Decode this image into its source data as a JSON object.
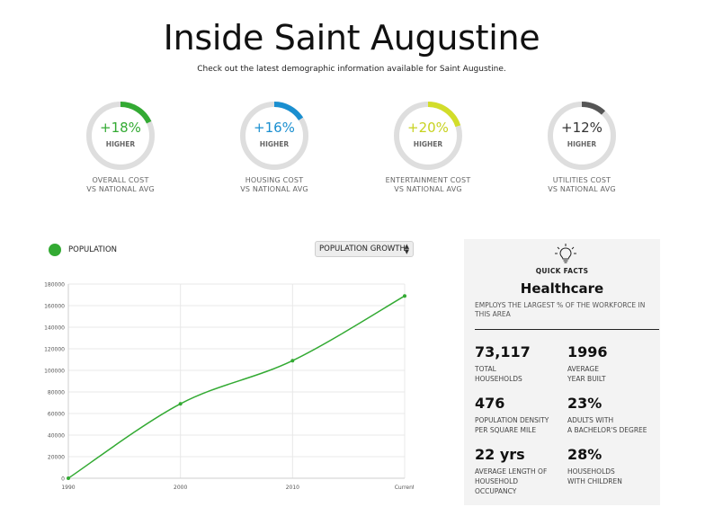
{
  "header": {
    "title": "Inside Saint Augustine",
    "subtitle": "Check out the latest demographic information available for Saint Augustine."
  },
  "stats": [
    {
      "value": "+18%",
      "sub": "HIGHER",
      "label_line1": "OVERALL COST",
      "label_line2": "VS NATIONAL AVG",
      "color": "#33aa33",
      "percent": 18
    },
    {
      "value": "+16%",
      "sub": "HIGHER",
      "label_line1": "HOUSING COST",
      "label_line2": "VS NATIONAL AVG",
      "color": "#1a8fd0",
      "percent": 16
    },
    {
      "value": "+20%",
      "sub": "HIGHER",
      "label_line1": "ENTERTAINMENT COST",
      "label_line2": "VS NATIONAL AVG",
      "color": "#d2dd2a",
      "percent": 20
    },
    {
      "value": "+12%",
      "sub": "HIGHER",
      "label_line1": "UTILITIES COST",
      "label_line2": "VS NATIONAL AVG",
      "color": "#555555",
      "percent": 12
    }
  ],
  "chart_controls": {
    "legend_label": "POPULATION",
    "legend_color": "#33aa33",
    "select_value": "POPULATION GROWTH"
  },
  "chart_data": {
    "type": "line",
    "categories": [
      "1990",
      "2000",
      "2010",
      "Current"
    ],
    "series": [
      {
        "values": [
          0,
          69000,
          109000,
          169000
        ],
        "color": "#33aa33"
      }
    ],
    "title": "",
    "xlabel": "",
    "ylabel": "",
    "ylim": [
      0,
      180000
    ],
    "yticks": [
      "0",
      "20000",
      "40000",
      "60000",
      "80000",
      "100000",
      "120000",
      "140000",
      "160000",
      "180000"
    ],
    "grid": true
  },
  "quick_facts": {
    "icon": "lightbulb-icon",
    "kicker": "QUICK FACTS",
    "title": "Healthcare",
    "description": "EMPLOYS THE LARGEST % OF THE WORKFORCE IN THIS AREA",
    "items": [
      {
        "value": "73,117",
        "label_line1": "TOTAL",
        "label_line2": "HOUSEHOLDS"
      },
      {
        "value": "1996",
        "label_line1": "AVERAGE",
        "label_line2": "YEAR BUILT"
      },
      {
        "value": "476",
        "label_line1": "POPULATION DENSITY",
        "label_line2": "PER SQUARE MILE"
      },
      {
        "value": "23%",
        "label_line1": "ADULTS WITH",
        "label_line2": "A BACHELOR'S DEGREE"
      },
      {
        "value": "22 yrs",
        "label_line1": "AVERAGE LENGTH OF",
        "label_line2": "HOUSEHOLD",
        "label_line3": "OCCUPANCY"
      },
      {
        "value": "28%",
        "label_line1": "HOUSEHOLDS",
        "label_line2": "WITH CHILDREN"
      }
    ]
  }
}
